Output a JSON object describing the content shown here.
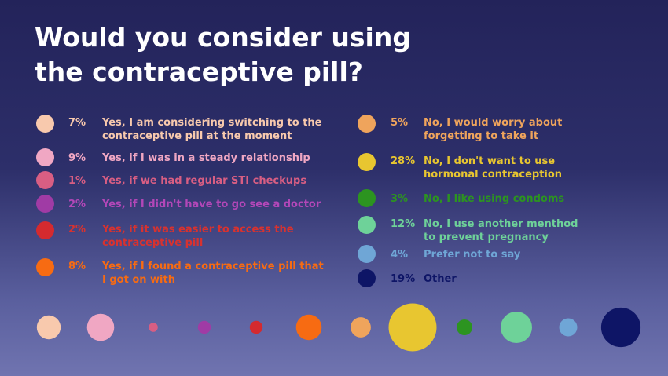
{
  "title": "Would you consider using the contraceptive pill?",
  "chart_data": {
    "type": "bubble",
    "title": "Would you consider using the contraceptive pill?",
    "unit": "%",
    "categories": [
      "Yes, I am considering switching to the contraceptive pill at the moment",
      "Yes, if I was in a steady relationship",
      "Yes, if we had regular STI checkups",
      "Yes, if I didn't have to go see a doctor",
      "Yes, if it was easier to access the contraceptive pill",
      "Yes, if I found a contraceptive pill that I got on with",
      "No, I would worry about forgetting to take it",
      "No, I don't want to use hormonal contraception",
      "No, I like using condoms",
      "No, I use another menthod to prevent pregnancy",
      "Prefer not to say",
      "Other"
    ],
    "values": [
      7,
      9,
      1,
      2,
      2,
      8,
      5,
      28,
      3,
      12,
      4,
      19
    ],
    "colors": [
      "#f8c9ad",
      "#f0a7c3",
      "#d85e83",
      "#a03ba5",
      "#d42a2f",
      "#f76b12",
      "#efa45c",
      "#e8c630",
      "#2c9420",
      "#6ed299",
      "#6fa6d6",
      "#0e1566"
    ],
    "legend": [
      {
        "pct": "7%",
        "label": "Yes, I am considering switching to the contraceptive pill at the moment",
        "color": "#f8c9ad",
        "text_color": "#f8c9ad"
      },
      {
        "pct": "9%",
        "label": "Yes, if I was in a steady relationship",
        "color": "#f0a7c3",
        "text_color": "#f0a7c3"
      },
      {
        "pct": "1%",
        "label": "Yes, if we had regular STI checkups",
        "color": "#d85e83",
        "text_color": "#d85e83"
      },
      {
        "pct": "2%",
        "label": "Yes, if I didn't have to go see a doctor",
        "color": "#a03ba5",
        "text_color": "#b347b8"
      },
      {
        "pct": "2%",
        "label": "Yes, if it was easier to access the contraceptive pill",
        "color": "#d42a2f",
        "text_color": "#d8322f"
      },
      {
        "pct": "8%",
        "label": "Yes, if I found a contraceptive pill that I got on with",
        "color": "#f76b12",
        "text_color": "#f76b12"
      },
      {
        "pct": "5%",
        "label": "No, I would worry about forgetting to take it",
        "color": "#efa45c",
        "text_color": "#efa45c"
      },
      {
        "pct": "28%",
        "label": "No, I don't want to use hormonal contraception",
        "color": "#e8c630",
        "text_color": "#e8c630"
      },
      {
        "pct": "3%",
        "label": "No, I like using condoms",
        "color": "#2c9420",
        "text_color": "#2c9420"
      },
      {
        "pct": "12%",
        "label": "No, I use another menthod to prevent pregnancy",
        "color": "#6ed299",
        "text_color": "#6ed299"
      },
      {
        "pct": "4%",
        "label": "Prefer not to say",
        "color": "#6fa6d6",
        "text_color": "#6fa6d6"
      },
      {
        "pct": "19%",
        "label": "Other",
        "color": "#0e1566",
        "text_color": "#0e1566"
      }
    ]
  }
}
